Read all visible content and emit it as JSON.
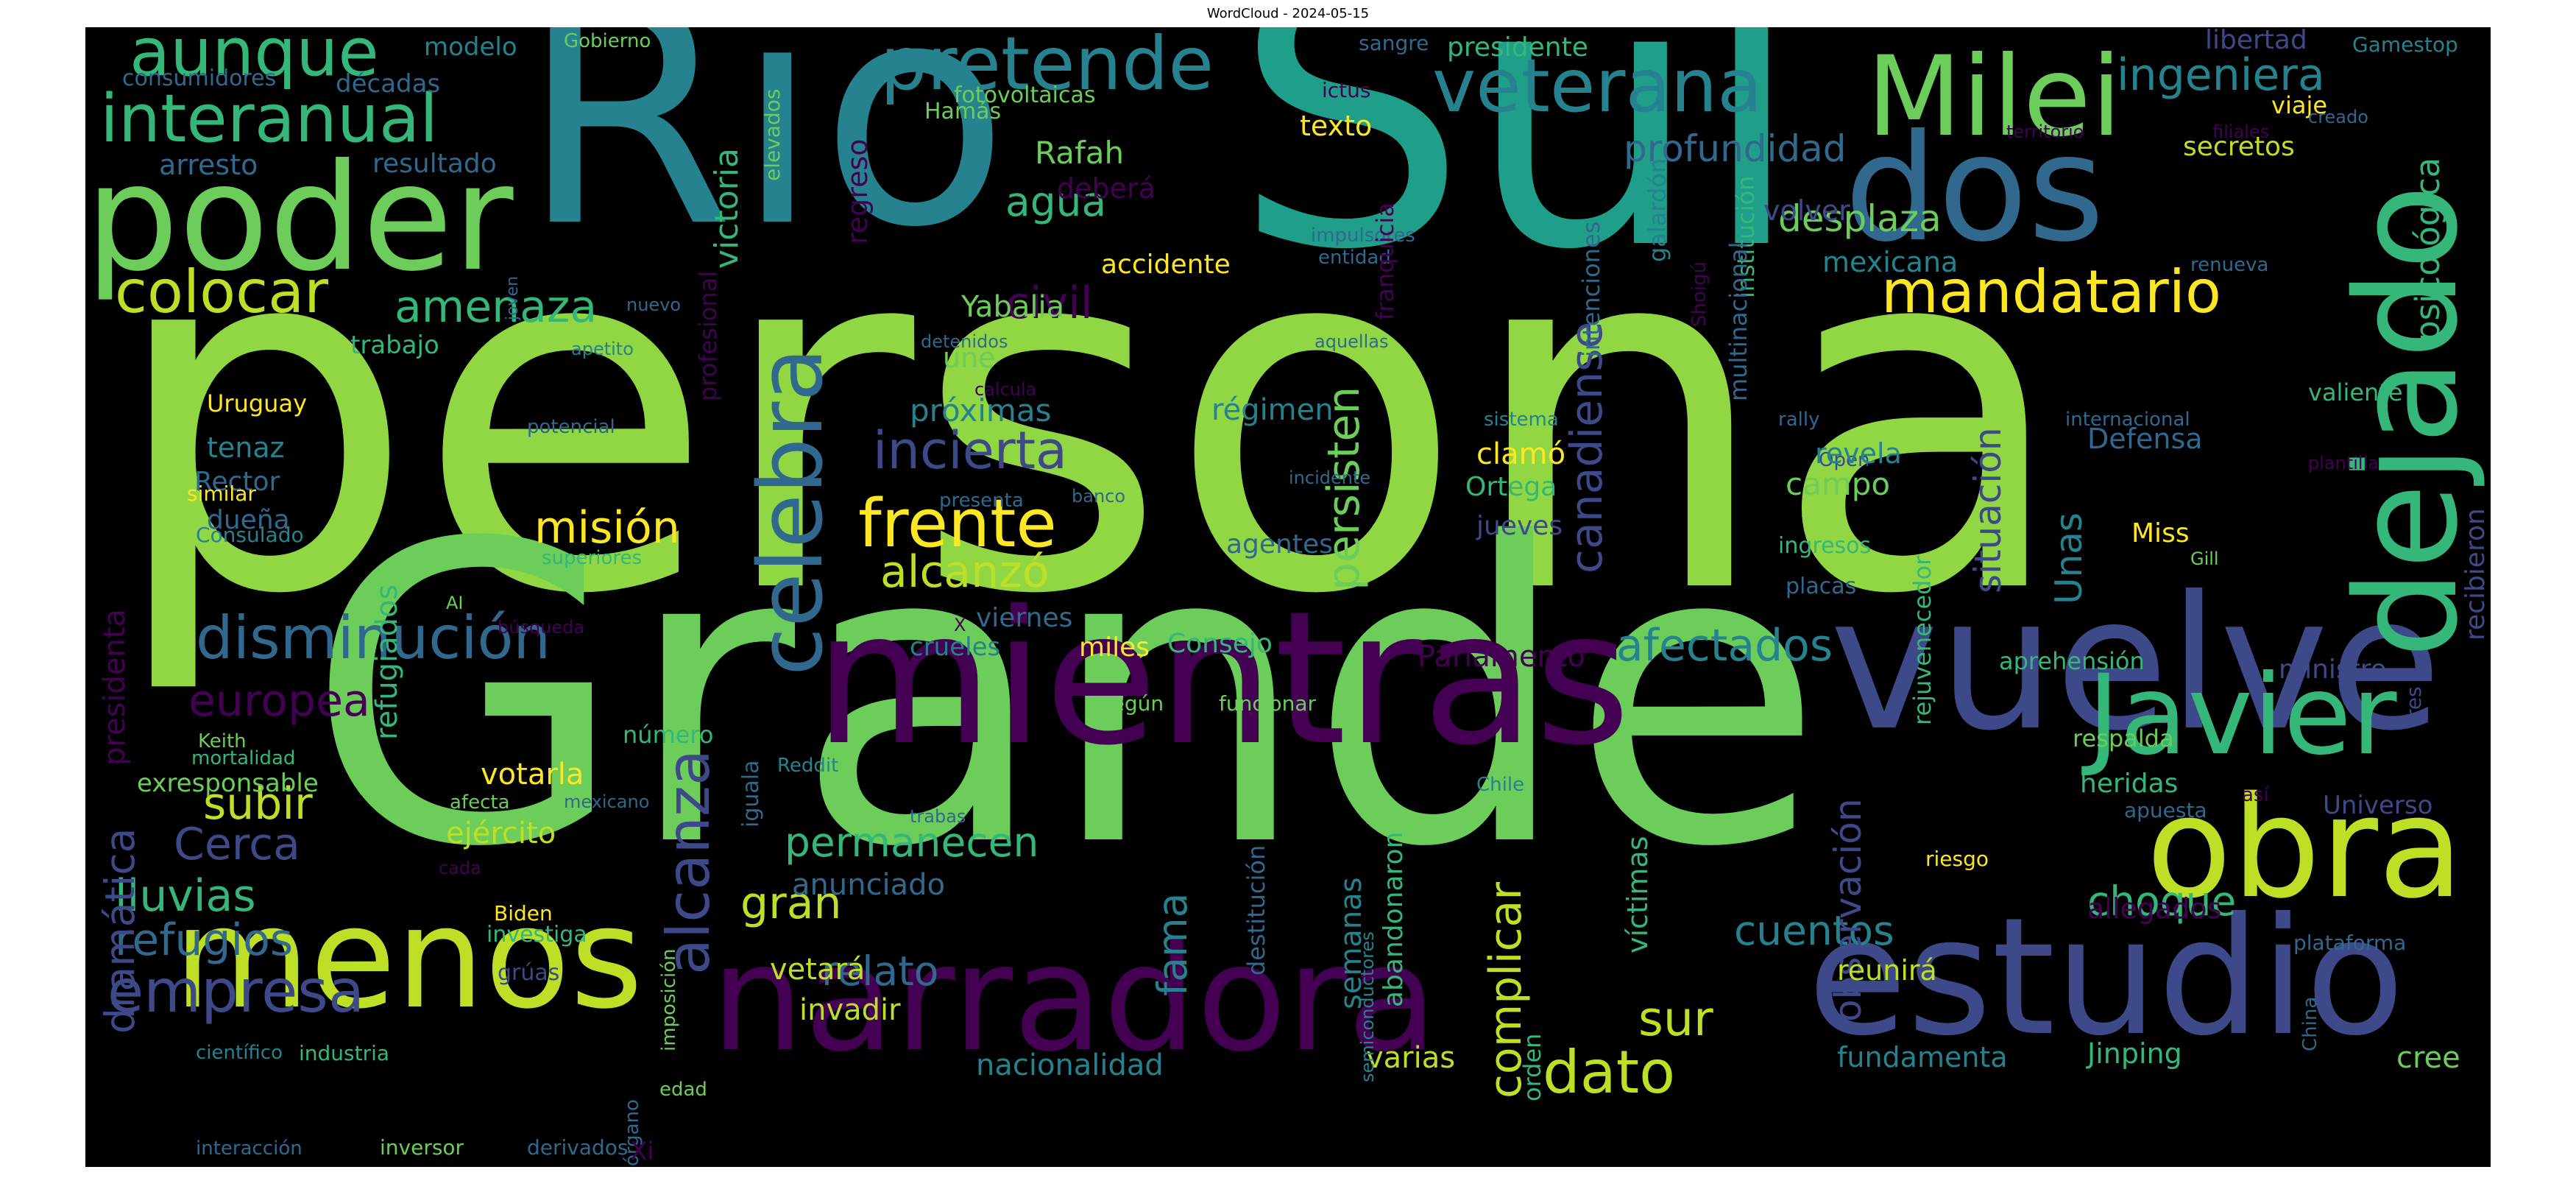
{
  "title": "WordCloud - 2024-05-15",
  "palette": {
    "background": "#000000",
    "c1": "#90d743",
    "c2": "#6ccd5a",
    "c3": "#1f9e89",
    "c4": "#440154",
    "c5": "#3e4989",
    "c6": "#fde725",
    "c7": "#35b779",
    "c8": "#31688e",
    "c9": "#26828e",
    "c10": "#bddf26"
  },
  "words": [
    {
      "text": "persona",
      "color": "#90d743"
    },
    {
      "text": "Grande",
      "color": "#6ccd5a"
    },
    {
      "text": "Sul",
      "color": "#1f9e89"
    },
    {
      "text": "Rio",
      "color": "#26828e"
    },
    {
      "text": "mientras",
      "color": "#440154"
    },
    {
      "text": "vuelve",
      "color": "#3e4989"
    },
    {
      "text": "narradora",
      "color": "#440154"
    },
    {
      "text": "estudio",
      "color": "#3e4989"
    },
    {
      "text": "poder",
      "color": "#6ccd5a"
    },
    {
      "text": "dos",
      "color": "#31688e"
    },
    {
      "text": "dejado",
      "color": "#35b779"
    },
    {
      "text": "obra",
      "color": "#bddf26"
    },
    {
      "text": "menos",
      "color": "#bddf26"
    },
    {
      "text": "Milei",
      "color": "#6ccd5a"
    },
    {
      "text": "Javier",
      "color": "#35b779"
    },
    {
      "text": "celebra",
      "color": "#31688e"
    },
    {
      "text": "frente",
      "color": "#fde725"
    },
    {
      "text": "veterana",
      "color": "#26828e"
    },
    {
      "text": "pretende",
      "color": "#26828e"
    },
    {
      "text": "interanual",
      "color": "#35b779"
    },
    {
      "text": "aunque",
      "color": "#35b779"
    },
    {
      "text": "mandatario",
      "color": "#fde725"
    },
    {
      "text": "colocar",
      "color": "#bddf26"
    },
    {
      "text": "disminución",
      "color": "#31688e"
    },
    {
      "text": "amenaza",
      "color": "#35b779"
    },
    {
      "text": "misión",
      "color": "#fde725"
    },
    {
      "text": "alcanzó",
      "color": "#bddf26"
    },
    {
      "text": "incierta",
      "color": "#3e4989"
    },
    {
      "text": "afectados",
      "color": "#26828e"
    },
    {
      "text": "europea",
      "color": "#440154"
    },
    {
      "text": "empresa",
      "color": "#3e4989"
    },
    {
      "text": "refugios",
      "color": "#31688e"
    },
    {
      "text": "lluvias",
      "color": "#35b779"
    },
    {
      "text": "Cerca",
      "color": "#3e4989"
    },
    {
      "text": "subir",
      "color": "#bddf26"
    },
    {
      "text": "permanecen",
      "color": "#35b779"
    },
    {
      "text": "gran",
      "color": "#bddf26"
    },
    {
      "text": "relato",
      "color": "#31688e"
    },
    {
      "text": "cuentos",
      "color": "#26828e"
    },
    {
      "text": "choque",
      "color": "#35b779"
    },
    {
      "text": "sur",
      "color": "#bddf26"
    },
    {
      "text": "dato",
      "color": "#bddf26"
    },
    {
      "text": "alcanza",
      "color": "#3e4989"
    },
    {
      "text": "persisten",
      "color": "#6ccd5a"
    },
    {
      "text": "complicar",
      "color": "#bddf26"
    },
    {
      "text": "fama",
      "color": "#26828e"
    },
    {
      "text": "civil",
      "color": "#440154"
    },
    {
      "text": "agua",
      "color": "#35b779"
    },
    {
      "text": "ingeniera",
      "color": "#26828e"
    },
    {
      "text": "profundidad",
      "color": "#31688e"
    },
    {
      "text": "desplaza",
      "color": "#6ccd5a"
    },
    {
      "text": "canadiense",
      "color": "#3e4989"
    },
    {
      "text": "situación",
      "color": "#3e4989"
    },
    {
      "text": "observación",
      "color": "#3e4989"
    },
    {
      "text": "psicológica",
      "color": "#35b779"
    },
    {
      "text": "dramática",
      "color": "#3e4989"
    },
    {
      "text": "presidenta",
      "color": "#440154"
    },
    {
      "text": "refugiados",
      "color": "#35b779"
    },
    {
      "text": "votarla",
      "color": "#fde725"
    },
    {
      "text": "ejército",
      "color": "#bddf26"
    },
    {
      "text": "anunciado",
      "color": "#31688e"
    },
    {
      "text": "vetará",
      "color": "#bddf26"
    },
    {
      "text": "invadir",
      "color": "#bddf26"
    },
    {
      "text": "nacionalidad",
      "color": "#26828e"
    },
    {
      "text": "Parlamento",
      "color": "#440154"
    },
    {
      "text": "arresto",
      "color": "#31688e"
    },
    {
      "text": "resultado",
      "color": "#31688e"
    },
    {
      "text": "modelo",
      "color": "#26828e"
    },
    {
      "text": "décadas",
      "color": "#31688e"
    },
    {
      "text": "consumidores",
      "color": "#31688e"
    },
    {
      "text": "Gobierno",
      "color": "#6ccd5a"
    },
    {
      "text": "fotovoltaicas",
      "color": "#6ccd5a"
    },
    {
      "text": "Hamás",
      "color": "#6ccd5a"
    },
    {
      "text": "Rafah",
      "color": "#6ccd5a"
    },
    {
      "text": "deberá",
      "color": "#440154"
    },
    {
      "text": "texto",
      "color": "#fde725"
    },
    {
      "text": "accidente",
      "color": "#fde725"
    },
    {
      "text": "presidente",
      "color": "#35b779"
    },
    {
      "text": "sangre",
      "color": "#31688e"
    },
    {
      "text": "ictus",
      "color": "#440154"
    },
    {
      "text": "libertad",
      "color": "#3e4989"
    },
    {
      "text": "Gamestop",
      "color": "#26828e"
    },
    {
      "text": "filiales",
      "color": "#440154"
    },
    {
      "text": "territorio",
      "color": "#440154"
    },
    {
      "text": "viaje",
      "color": "#fde725"
    },
    {
      "text": "secretos",
      "color": "#bddf26"
    },
    {
      "text": "creado",
      "color": "#31688e"
    },
    {
      "text": "volver",
      "color": "#3e4989"
    },
    {
      "text": "mexicana",
      "color": "#26828e"
    },
    {
      "text": "renueva",
      "color": "#31688e"
    },
    {
      "text": "Yabalia",
      "color": "#6ccd5a"
    },
    {
      "text": "próximas",
      "color": "#26828e"
    },
    {
      "text": "régimen",
      "color": "#26828e"
    },
    {
      "text": "trabajo",
      "color": "#35b779"
    },
    {
      "text": "apetito",
      "color": "#26828e"
    },
    {
      "text": "nuevo",
      "color": "#31688e"
    },
    {
      "text": "detenidos",
      "color": "#31688e"
    },
    {
      "text": "une",
      "color": "#6ccd5a"
    },
    {
      "text": "aquellas",
      "color": "#31688e"
    },
    {
      "text": "calcula",
      "color": "#440154"
    },
    {
      "text": "entidad",
      "color": "#31688e"
    },
    {
      "text": "impulsores",
      "color": "#31688e"
    },
    {
      "text": "Uruguay",
      "color": "#fde725"
    },
    {
      "text": "tenaz",
      "color": "#26828e"
    },
    {
      "text": "Rector",
      "color": "#31688e"
    },
    {
      "text": "similar",
      "color": "#fde725"
    },
    {
      "text": "dueña",
      "color": "#31688e"
    },
    {
      "text": "Consulado",
      "color": "#26828e"
    },
    {
      "text": "potencial",
      "color": "#31688e"
    },
    {
      "text": "superiores",
      "color": "#35b779"
    },
    {
      "text": "AI",
      "color": "#6ccd5a"
    },
    {
      "text": "búsqueda",
      "color": "#440154"
    },
    {
      "text": "presenta",
      "color": "#31688e"
    },
    {
      "text": "banco",
      "color": "#31688e"
    },
    {
      "text": "agentes",
      "color": "#31688e"
    },
    {
      "text": "clamó",
      "color": "#fde725"
    },
    {
      "text": "Ortega",
      "color": "#35b779"
    },
    {
      "text": "jueves",
      "color": "#3e4989"
    },
    {
      "text": "sistema",
      "color": "#26828e"
    },
    {
      "text": "incidente",
      "color": "#31688e"
    },
    {
      "text": "rally",
      "color": "#31688e"
    },
    {
      "text": "Open",
      "color": "#3e4989"
    },
    {
      "text": "internacional",
      "color": "#31688e"
    },
    {
      "text": "valiente",
      "color": "#35b779"
    },
    {
      "text": "Defensa",
      "color": "#31688e"
    },
    {
      "text": "revela",
      "color": "#26828e"
    },
    {
      "text": "campo",
      "color": "#6ccd5a"
    },
    {
      "text": "Unas",
      "color": "#26828e"
    },
    {
      "text": "ingresos",
      "color": "#35b779"
    },
    {
      "text": "placas",
      "color": "#31688e"
    },
    {
      "text": "Miss",
      "color": "#fde725"
    },
    {
      "text": "Gill",
      "color": "#6ccd5a"
    },
    {
      "text": "plantilla",
      "color": "#440154"
    },
    {
      "text": "recibieron",
      "color": "#3e4989"
    },
    {
      "text": "viernes",
      "color": "#31688e"
    },
    {
      "text": "miles",
      "color": "#fde725"
    },
    {
      "text": "Consejo",
      "color": "#35b779"
    },
    {
      "text": "crueles",
      "color": "#26828e"
    },
    {
      "text": "X",
      "color": "#440154"
    },
    {
      "text": "aprehensión",
      "color": "#35b779"
    },
    {
      "text": "ministro",
      "color": "#3e4989"
    },
    {
      "text": "tres",
      "color": "#3e4989"
    },
    {
      "text": "según",
      "color": "#6ccd5a"
    },
    {
      "text": "funcionar",
      "color": "#6ccd5a"
    },
    {
      "text": "número",
      "color": "#35b779"
    },
    {
      "text": "Keith",
      "color": "#6ccd5a"
    },
    {
      "text": "mortalidad",
      "color": "#35b779"
    },
    {
      "text": "exresponsable",
      "color": "#6ccd5a"
    },
    {
      "text": "iguala",
      "color": "#31688e"
    },
    {
      "text": "Reddit",
      "color": "#26828e"
    },
    {
      "text": "afecta",
      "color": "#6ccd5a"
    },
    {
      "text": "mexicano",
      "color": "#31688e"
    },
    {
      "text": "cada",
      "color": "#440154"
    },
    {
      "text": "trabas",
      "color": "#31688e"
    },
    {
      "text": "Biden",
      "color": "#fde725"
    },
    {
      "text": "investiga",
      "color": "#35b779"
    },
    {
      "text": "grúas",
      "color": "#3e4989"
    },
    {
      "text": "imposición",
      "color": "#6ccd5a"
    },
    {
      "text": "científico",
      "color": "#26828e"
    },
    {
      "text": "industria",
      "color": "#35b779"
    },
    {
      "text": "órgano",
      "color": "#31688e"
    },
    {
      "text": "edad",
      "color": "#6ccd5a"
    },
    {
      "text": "interacción",
      "color": "#31688e"
    },
    {
      "text": "inversor",
      "color": "#6ccd5a"
    },
    {
      "text": "derivados",
      "color": "#31688e"
    },
    {
      "text": "Xi",
      "color": "#440154"
    },
    {
      "text": "Chile",
      "color": "#26828e"
    },
    {
      "text": "respalda",
      "color": "#6ccd5a"
    },
    {
      "text": "heridas",
      "color": "#35b779"
    },
    {
      "text": "así",
      "color": "#440154"
    },
    {
      "text": "apuesta",
      "color": "#31688e"
    },
    {
      "text": "Universo",
      "color": "#3e4989"
    },
    {
      "text": "riesgo",
      "color": "#fde725"
    },
    {
      "text": "allegados",
      "color": "#440154"
    },
    {
      "text": "plataforma",
      "color": "#31688e"
    },
    {
      "text": "reunirá",
      "color": "#bddf26"
    },
    {
      "text": "fundamenta",
      "color": "#26828e"
    },
    {
      "text": "Jinping",
      "color": "#35b779"
    },
    {
      "text": "cree",
      "color": "#6ccd5a"
    },
    {
      "text": "varias",
      "color": "#bddf26"
    },
    {
      "text": "semanas",
      "color": "#26828e"
    },
    {
      "text": "semiconductores",
      "color": "#26828e"
    },
    {
      "text": "abandonaron",
      "color": "#35b779"
    },
    {
      "text": "destitución",
      "color": "#31688e"
    },
    {
      "text": "víctimas",
      "color": "#35b779"
    },
    {
      "text": "orden",
      "color": "#35b779"
    },
    {
      "text": "victoria",
      "color": "#35b779"
    },
    {
      "text": "elevados",
      "color": "#6ccd5a"
    },
    {
      "text": "profesional",
      "color": "#440154"
    },
    {
      "text": "joven",
      "color": "#31688e"
    },
    {
      "text": "regreso",
      "color": "#440154"
    },
    {
      "text": "franquicia",
      "color": "#440154"
    },
    {
      "text": "intenciones",
      "color": "#31688e"
    },
    {
      "text": "galardón",
      "color": "#26828e"
    },
    {
      "text": "institución",
      "color": "#35b779"
    },
    {
      "text": "multinacional",
      "color": "#31688e"
    },
    {
      "text": "Shoigú",
      "color": "#440154"
    },
    {
      "text": "rejuvenecedor",
      "color": "#35b779"
    },
    {
      "text": "China",
      "color": "#31688e"
    },
    {
      "text": "portuarias",
      "color": "#31688e"
    }
  ]
}
